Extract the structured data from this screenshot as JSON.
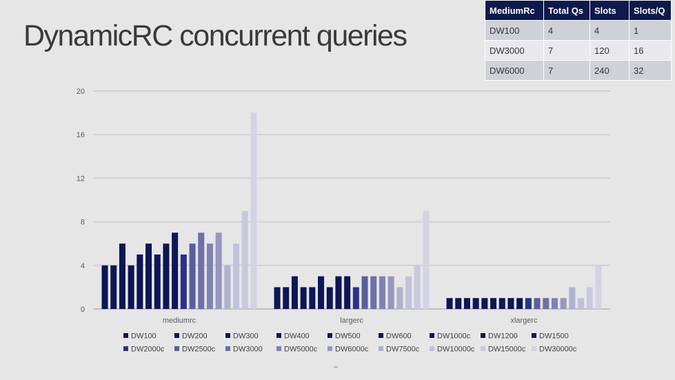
{
  "title": "DynamicRC concurrent queries",
  "table": {
    "headers": [
      "MediumRc",
      "Total Qs",
      "Slots",
      "Slots/Q"
    ],
    "rows": [
      [
        "DW100",
        "4",
        "4",
        "1"
      ],
      [
        "DW3000",
        "7",
        "120",
        "16"
      ],
      [
        "DW6000",
        "7",
        "240",
        "32"
      ]
    ]
  },
  "footer_mark": "–",
  "chart_data": {
    "type": "bar",
    "categories": [
      "mediumrc",
      "largerc",
      "xlargerc"
    ],
    "ylim": [
      0,
      20
    ],
    "yticks": [
      0,
      4,
      8,
      12,
      16,
      20
    ],
    "grid": true,
    "legend_position": "bottom",
    "series": [
      {
        "name": "DW100",
        "color": "#0d1656",
        "values": [
          4,
          2,
          1
        ]
      },
      {
        "name": "DW200",
        "color": "#0d1656",
        "values": [
          4,
          2,
          1
        ]
      },
      {
        "name": "DW300",
        "color": "#0d1656",
        "values": [
          6,
          3,
          1
        ]
      },
      {
        "name": "DW400",
        "color": "#0d1656",
        "values": [
          4,
          2,
          1
        ]
      },
      {
        "name": "DW500",
        "color": "#0d1656",
        "values": [
          5,
          2,
          1
        ]
      },
      {
        "name": "DW600",
        "color": "#0d1656",
        "values": [
          6,
          3,
          1
        ]
      },
      {
        "name": "DW1000c",
        "color": "#0d1656",
        "values": [
          5,
          2,
          1
        ]
      },
      {
        "name": "DW1200",
        "color": "#0d1656",
        "values": [
          6,
          3,
          1
        ]
      },
      {
        "name": "DW1500",
        "color": "#0d1656",
        "values": [
          7,
          3,
          1
        ]
      },
      {
        "name": "DW2000c",
        "color": "#2a3288",
        "values": [
          5,
          2,
          1
        ]
      },
      {
        "name": "DW2500c",
        "color": "#5a5f9a",
        "values": [
          6,
          3,
          1
        ]
      },
      {
        "name": "DW3000",
        "color": "#6e70a8",
        "values": [
          7,
          3,
          1
        ]
      },
      {
        "name": "DW5000c",
        "color": "#7f82b2",
        "values": [
          6,
          3,
          1
        ]
      },
      {
        "name": "DW6000c",
        "color": "#9697c0",
        "values": [
          7,
          3,
          1
        ]
      },
      {
        "name": "DW7500c",
        "color": "#b0b1cf",
        "values": [
          4,
          2,
          2
        ]
      },
      {
        "name": "DW10000c",
        "color": "#c1c2da",
        "values": [
          6,
          3,
          1
        ]
      },
      {
        "name": "DW15000c",
        "color": "#c8c9de",
        "values": [
          9,
          4,
          2
        ]
      },
      {
        "name": "DW30000c",
        "color": "#d3d3e4",
        "values": [
          18,
          9,
          4
        ]
      }
    ]
  }
}
